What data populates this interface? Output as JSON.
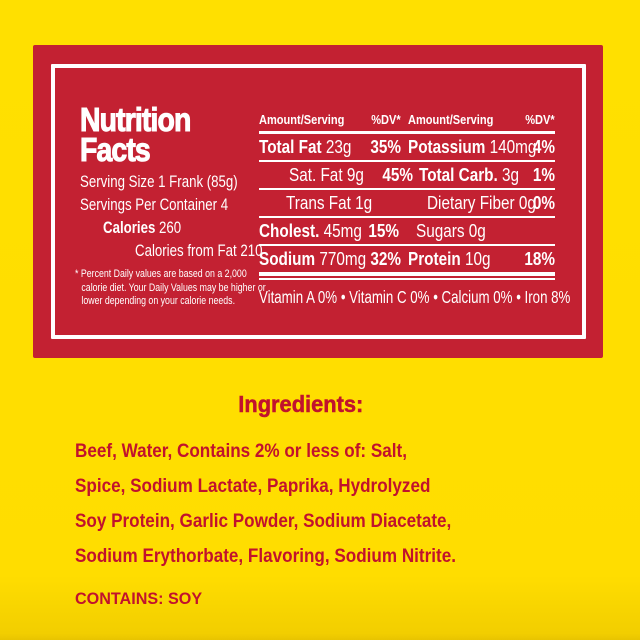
{
  "panel": {
    "title_line1": "Nutrition",
    "title_line2": "Facts",
    "serving_size": "Serving Size 1 Frank (85g)",
    "servings_per_container": "Servings Per Container 4",
    "calories_label": "Calories",
    "calories_value": "260",
    "calories_from_fat": "Calories from Fat 210",
    "footnote": "* Percent Daily values are based on a 2,000 calorie diet. Your Daily Values may be higher or lower depending on your calorie needs.",
    "table": {
      "header_amount": "Amount/Serving",
      "header_dv": "%DV*",
      "rows": [
        {
          "l_label": "Total Fat",
          "l_value": "23g",
          "l_dv": "35%",
          "r_label": "Potassium",
          "r_value": "140mg",
          "r_dv": "4%"
        },
        {
          "l_label": "Sat. Fat",
          "l_value": "9g",
          "l_dv": "45%",
          "r_label": "Total Carb.",
          "r_value": "3g",
          "r_dv": "1%"
        },
        {
          "l_label": "Trans Fat",
          "l_value": "1g",
          "l_dv": "",
          "r_label": "Dietary Fiber",
          "r_value": "0g",
          "r_dv": "0%"
        },
        {
          "l_label": "Cholest.",
          "l_value": "45mg",
          "l_dv": "15%",
          "r_label": "Sugars",
          "r_value": "0g",
          "r_dv": ""
        },
        {
          "l_label": "Sodium",
          "l_value": "770mg",
          "l_dv": "32%",
          "r_label": "Protein",
          "r_value": "10g",
          "r_dv": "18%"
        }
      ],
      "vitamins": "Vitamin A 0% • Vitamin C 0% • Calcium 0% • Iron 8%"
    }
  },
  "ingredients": {
    "heading": "Ingredients:",
    "body_lines": [
      "Beef, Water, Contains 2% or less of: Salt,",
      "Spice, Sodium Lactate, Paprika, Hydrolyzed",
      "Soy Protein, Garlic Powder, Sodium Diacetate,",
      "Sodium Erythorbate, Flavoring, Sodium Nitrite."
    ],
    "contains": "CONTAINS: SOY"
  },
  "colors": {
    "background_yellow": "#FFDD00",
    "panel_red": "#C32132",
    "panel_text": "#FFFFFF",
    "ingredients_red": "#C1122D"
  }
}
